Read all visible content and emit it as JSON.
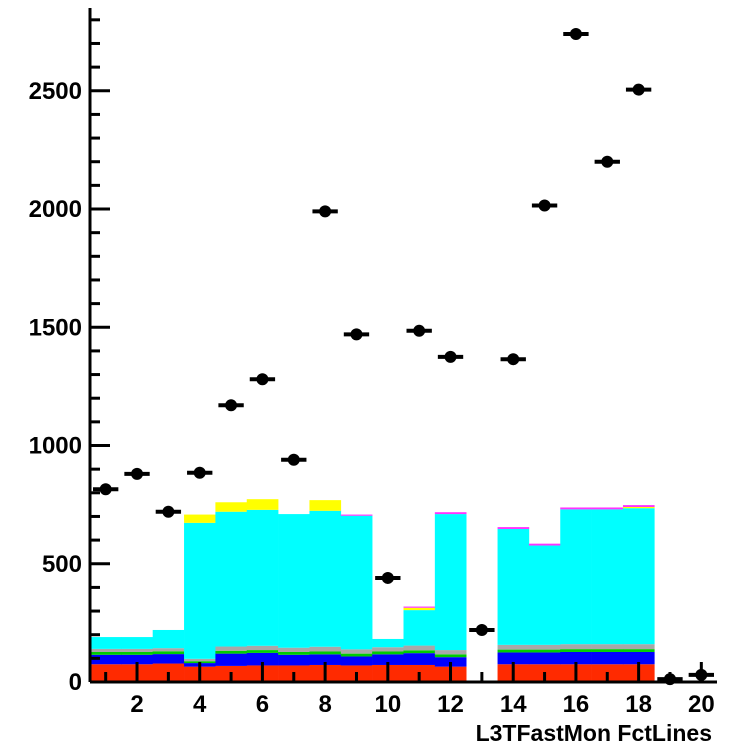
{
  "chart_data": {
    "type": "bar",
    "title": "",
    "xlabel": "L3TFastMon FctLines",
    "ylabel": "",
    "xlim": [
      0.5,
      20.5
    ],
    "ylim": [
      0,
      2850
    ],
    "x_ticks": [
      2,
      4,
      6,
      8,
      10,
      12,
      14,
      16,
      18,
      20
    ],
    "y_ticks": [
      0,
      500,
      1000,
      1500,
      2000,
      2500
    ],
    "grid": false,
    "legend": "none",
    "stack_colors": [
      "#ff2a00",
      "#0000ff",
      "#00cc00",
      "#a8a8a8",
      "#00ffff",
      "#ffff00",
      "#ff33ff"
    ],
    "bins": [
      1,
      2,
      3,
      4,
      5,
      6,
      7,
      8,
      9,
      10,
      11,
      12,
      13,
      14,
      15,
      16,
      17,
      18,
      19,
      20
    ],
    "stacked_series": [
      {
        "values": [
          75,
          75,
          78,
          65,
          68,
          70,
          70,
          72,
          70,
          72,
          72,
          65,
          0,
          75,
          75,
          75,
          75,
          75,
          0,
          0
        ]
      },
      {
        "values": [
          40,
          40,
          40,
          15,
          52,
          53,
          45,
          45,
          38,
          45,
          50,
          40,
          0,
          50,
          50,
          52,
          52,
          52,
          0,
          0
        ]
      },
      {
        "values": [
          12,
          12,
          12,
          8,
          12,
          12,
          12,
          12,
          12,
          12,
          12,
          12,
          0,
          12,
          12,
          12,
          12,
          12,
          0,
          0
        ]
      },
      {
        "values": [
          13,
          13,
          13,
          10,
          18,
          18,
          18,
          20,
          18,
          18,
          20,
          18,
          0,
          20,
          20,
          21,
          21,
          21,
          0,
          0
        ]
      },
      {
        "values": [
          50,
          50,
          77,
          575,
          570,
          575,
          565,
          575,
          565,
          35,
          150,
          575,
          0,
          490,
          420,
          570,
          570,
          575,
          0,
          0
        ]
      },
      {
        "values": [
          0,
          0,
          0,
          35,
          40,
          45,
          0,
          45,
          0,
          0,
          10,
          0,
          0,
          0,
          0,
          0,
          0,
          5,
          0,
          0
        ]
      },
      {
        "values": [
          0,
          0,
          0,
          0,
          0,
          0,
          0,
          0,
          5,
          0,
          5,
          8,
          0,
          8,
          8,
          8,
          8,
          8,
          0,
          0
        ]
      }
    ],
    "points": {
      "x": [
        1,
        2,
        3,
        4,
        5,
        6,
        7,
        8,
        9,
        10,
        11,
        12,
        13,
        14,
        15,
        16,
        17,
        18,
        19,
        20
      ],
      "y": [
        815,
        880,
        720,
        885,
        1170,
        1280,
        940,
        1990,
        1470,
        440,
        1485,
        1375,
        220,
        1365,
        2015,
        2740,
        2200,
        2505,
        12,
        30
      ]
    }
  }
}
